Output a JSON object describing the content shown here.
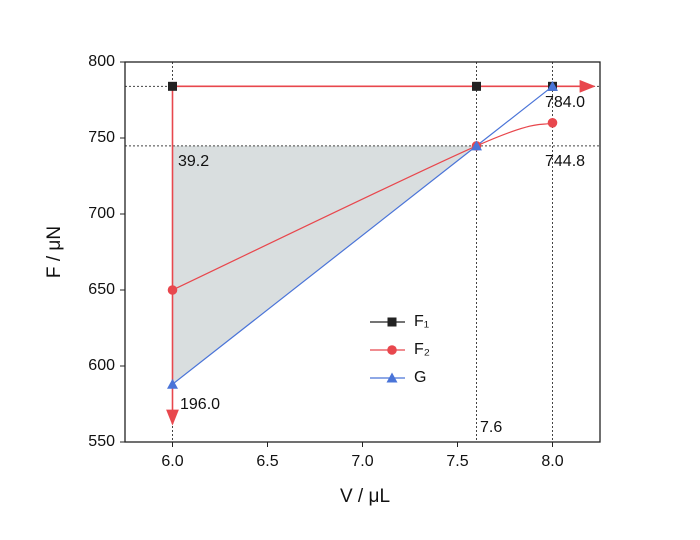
{
  "chart_data": {
    "type": "line",
    "xlabel": "V / μL",
    "ylabel": "F / μN",
    "xlim": [
      5.75,
      8.25
    ],
    "ylim": [
      550,
      800
    ],
    "xticks": [
      {
        "value": 6.0,
        "label": "6.0"
      },
      {
        "value": 6.5,
        "label": "6.5"
      },
      {
        "value": 7.0,
        "label": "7.0"
      },
      {
        "value": 7.5,
        "label": "7.5"
      },
      {
        "value": 8.0,
        "label": "8.0"
      }
    ],
    "yticks": [
      550,
      600,
      650,
      700,
      750,
      800
    ],
    "x": [
      6.0,
      7.6,
      8.0
    ],
    "series": [
      {
        "name": "F₁",
        "color": "#222222",
        "marker": "square",
        "values": [
          784,
          784,
          784
        ]
      },
      {
        "name": "F₂",
        "color": "#e8474d",
        "marker": "circle",
        "values": [
          650,
          744.8,
          760
        ]
      },
      {
        "name": "G",
        "color": "#4a74d8",
        "marker": "triangle",
        "values": [
          588,
          744.8,
          784
        ]
      }
    ],
    "annotations": [
      {
        "text": "784.0",
        "color": "#111111"
      },
      {
        "text": "744.8",
        "color": "#111111"
      },
      {
        "text": "39.2",
        "color": "#e8474d"
      },
      {
        "text": "196.0",
        "color": "#e8474d"
      },
      {
        "text": "7.6",
        "color": "#111111"
      }
    ],
    "legend": "center",
    "shade_color": "#d5dadc"
  }
}
